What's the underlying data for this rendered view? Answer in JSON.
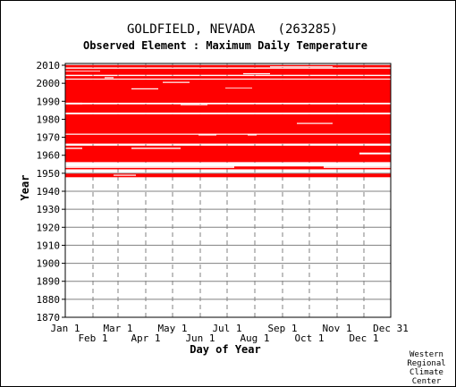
{
  "chart_data": {
    "type": "heatmap",
    "title": "GOLDFIELD, NEVADA   (263285)",
    "subtitle": "Observed Element : Maximum Daily Temperature",
    "xlabel": "Day of Year",
    "ylabel": "Year",
    "xlim": [
      1,
      365
    ],
    "ylim": [
      1870,
      2011
    ],
    "grid": true,
    "data_color": "#ff0000",
    "grid_color": "#808080",
    "y_ticks": [
      1870,
      1880,
      1890,
      1900,
      1910,
      1920,
      1930,
      1940,
      1950,
      1960,
      1970,
      1980,
      1990,
      2000,
      2010
    ],
    "x_ticks_upper": [
      {
        "label": "Jan 1",
        "day": 1
      },
      {
        "label": "Mar 1",
        "day": 60
      },
      {
        "label": "May 1",
        "day": 121
      },
      {
        "label": "Jul 1",
        "day": 182
      },
      {
        "label": "Sep 1",
        "day": 244
      },
      {
        "label": "Nov 1",
        "day": 305
      },
      {
        "label": "Dec 31",
        "day": 365
      }
    ],
    "x_ticks_lower": [
      {
        "label": "Feb 1",
        "day": 32
      },
      {
        "label": "Apr 1",
        "day": 91
      },
      {
        "label": "Jun 1",
        "day": 152
      },
      {
        "label": "Aug 1",
        "day": 213
      },
      {
        "label": "Oct 1",
        "day": 274
      },
      {
        "label": "Dec 1",
        "day": 335
      }
    ],
    "coverage": [
      {
        "year_start": 1947.8,
        "year_end": 1949.8,
        "day_start": 1,
        "day_end": 365
      },
      {
        "year_start": 1952.2,
        "year_end": 1953.8,
        "day_start": 1,
        "day_end": 365
      },
      {
        "year_start": 1956.2,
        "year_end": 1965.3,
        "day_start": 1,
        "day_end": 365
      },
      {
        "year_start": 1966.5,
        "year_end": 1971.4,
        "day_start": 1,
        "day_end": 365
      },
      {
        "year_start": 1972.0,
        "year_end": 1982.8,
        "day_start": 1,
        "day_end": 365
      },
      {
        "year_start": 1983.7,
        "year_end": 1988.3,
        "day_start": 1,
        "day_end": 365
      },
      {
        "year_start": 1989.2,
        "year_end": 2002.0,
        "day_start": 1,
        "day_end": 365
      },
      {
        "year_start": 2002.6,
        "year_end": 2004.0,
        "day_start": 1,
        "day_end": 365
      },
      {
        "year_start": 2004.7,
        "year_end": 2008.1,
        "day_start": 1,
        "day_end": 365
      },
      {
        "year_start": 2008.8,
        "year_end": 2010.1,
        "day_start": 1,
        "day_end": 365
      }
    ],
    "gaps": [
      {
        "year_start": 1948.6,
        "year_end": 1949.2,
        "day_start": 55,
        "day_end": 80
      },
      {
        "year_start": 1953.0,
        "year_end": 1953.8,
        "day_start": 1,
        "day_end": 190
      },
      {
        "year_start": 1953.0,
        "year_end": 1953.8,
        "day_start": 290,
        "day_end": 365
      },
      {
        "year_start": 1954.0,
        "year_end": 1955.8,
        "day_start": 1,
        "day_end": 365
      },
      {
        "year_start": 1960.5,
        "year_end": 1961.5,
        "day_start": 330,
        "day_end": 365
      },
      {
        "year_start": 1963.5,
        "year_end": 1964.2,
        "day_start": 1,
        "day_end": 20
      },
      {
        "year_start": 1963.5,
        "year_end": 1964.2,
        "day_start": 75,
        "day_end": 130
      },
      {
        "year_start": 1971.0,
        "year_end": 1971.6,
        "day_start": 150,
        "day_end": 170
      },
      {
        "year_start": 1971.0,
        "year_end": 1971.6,
        "day_start": 205,
        "day_end": 215
      },
      {
        "year_start": 1977.4,
        "year_end": 1978.0,
        "day_start": 260,
        "day_end": 300
      },
      {
        "year_start": 1982.8,
        "year_end": 1983.7,
        "day_start": 1,
        "day_end": 365
      },
      {
        "year_start": 1983.0,
        "year_end": 1983.5,
        "day_start": 300,
        "day_end": 330
      },
      {
        "year_start": 1987.8,
        "year_end": 1988.3,
        "day_start": 130,
        "day_end": 160
      },
      {
        "year_start": 1988.3,
        "year_end": 1989.2,
        "day_start": 1,
        "day_end": 20
      },
      {
        "year_start": 1996.6,
        "year_end": 1997.2,
        "day_start": 75,
        "day_end": 105
      },
      {
        "year_start": 1997.2,
        "year_end": 1997.6,
        "day_start": 180,
        "day_end": 210
      },
      {
        "year_start": 2000.2,
        "year_end": 2000.8,
        "day_start": 110,
        "day_end": 140
      },
      {
        "year_start": 2002.8,
        "year_end": 2003.4,
        "day_start": 45,
        "day_end": 55
      },
      {
        "year_start": 2005.0,
        "year_end": 2005.6,
        "day_start": 200,
        "day_end": 230
      },
      {
        "year_start": 2006.6,
        "year_end": 2007.0,
        "day_start": 1,
        "day_end": 40
      },
      {
        "year_start": 2008.9,
        "year_end": 2009.4,
        "day_start": 230,
        "day_end": 300
      }
    ]
  },
  "credit": {
    "line1": "Western",
    "line2": "Regional",
    "line3": "Climate",
    "line4": "Center"
  }
}
